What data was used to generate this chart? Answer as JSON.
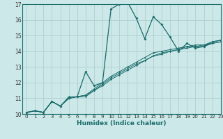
{
  "title": "",
  "xlabel": "Humidex (Indice chaleur)",
  "ylabel": "",
  "xlim": [
    -0.5,
    23
  ],
  "ylim": [
    10,
    17
  ],
  "xticks": [
    0,
    1,
    2,
    3,
    4,
    5,
    6,
    7,
    8,
    9,
    10,
    11,
    12,
    13,
    14,
    15,
    16,
    17,
    18,
    19,
    20,
    21,
    22,
    23
  ],
  "yticks": [
    10,
    11,
    12,
    13,
    14,
    15,
    16,
    17
  ],
  "bg_color": "#cce8e8",
  "grid_color": "#b0d0d0",
  "line_color": "#1a6b6b",
  "lines": [
    [
      10.1,
      10.2,
      10.1,
      10.8,
      10.5,
      11.0,
      11.1,
      12.7,
      11.8,
      12.0,
      16.7,
      17.0,
      17.1,
      16.1,
      14.8,
      16.2,
      15.7,
      14.9,
      14.0,
      14.5,
      14.2,
      14.3,
      14.6,
      14.7
    ],
    [
      10.1,
      10.2,
      10.1,
      10.8,
      10.5,
      11.1,
      11.1,
      11.1,
      11.5,
      11.8,
      12.2,
      12.5,
      12.8,
      13.1,
      13.4,
      13.7,
      13.8,
      14.0,
      14.1,
      14.2,
      14.3,
      14.3,
      14.5,
      14.6
    ],
    [
      10.1,
      10.2,
      10.1,
      10.8,
      10.5,
      11.0,
      11.1,
      11.2,
      11.5,
      11.9,
      12.3,
      12.6,
      12.9,
      13.2,
      13.4,
      13.7,
      13.9,
      14.0,
      14.1,
      14.3,
      14.3,
      14.4,
      14.5,
      14.6
    ],
    [
      10.1,
      10.2,
      10.1,
      10.8,
      10.5,
      11.0,
      11.1,
      11.2,
      11.6,
      12.0,
      12.4,
      12.7,
      13.0,
      13.3,
      13.6,
      13.9,
      14.0,
      14.1,
      14.2,
      14.3,
      14.4,
      14.4,
      14.6,
      14.7
    ]
  ],
  "xlabel_fontsize": 6.5,
  "tick_fontsize": 5.0
}
